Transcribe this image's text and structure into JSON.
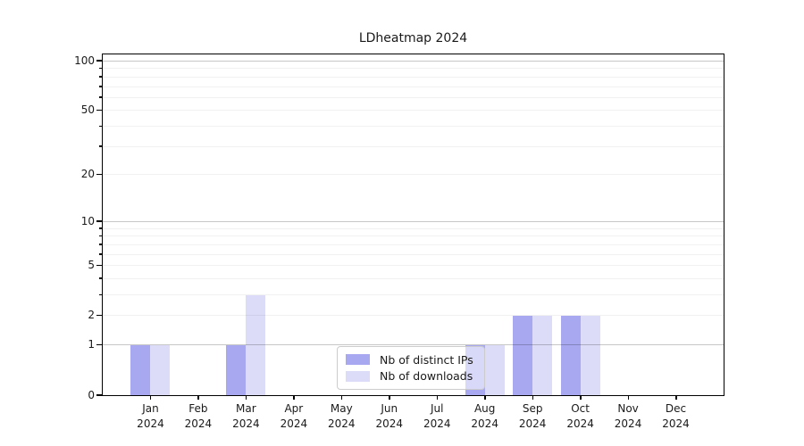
{
  "chart_data": {
    "type": "bar",
    "title": "LDheatmap 2024",
    "x_axis": {
      "months": [
        "Jan",
        "Feb",
        "Mar",
        "Apr",
        "May",
        "Jun",
        "Jul",
        "Aug",
        "Sep",
        "Oct",
        "Nov",
        "Dec"
      ],
      "year": "2024"
    },
    "y_axis": {
      "scale": "log1p",
      "major_ticks": [
        0,
        1,
        2,
        5,
        10,
        20,
        50,
        100
      ],
      "minor_ticks": [
        3,
        4,
        6,
        7,
        8,
        9,
        30,
        40,
        60,
        70,
        80,
        90
      ],
      "max_labeled": 100
    },
    "series": [
      {
        "name": "Nb of distinct IPs",
        "color": "#a8a8f0",
        "values": [
          1,
          0,
          1,
          0,
          0,
          0,
          0,
          1,
          2,
          2,
          0,
          0
        ]
      },
      {
        "name": "Nb of downloads",
        "color": "#dcdcf8",
        "values": [
          1,
          0,
          3,
          0,
          0,
          0,
          0,
          1,
          2,
          2,
          0,
          0
        ]
      }
    ],
    "legend": {
      "position": "lower center"
    },
    "grid": true
  }
}
